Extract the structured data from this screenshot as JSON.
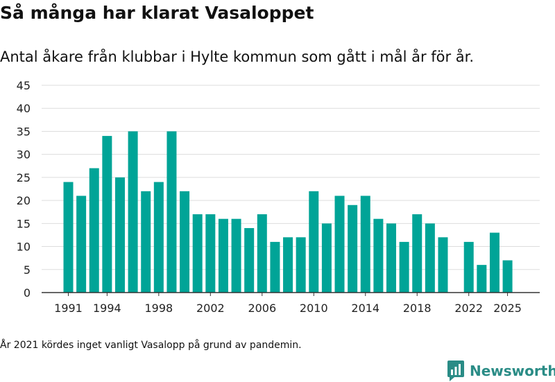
{
  "title": "Så många har klarat Vasaloppet",
  "subtitle": "Antal åkare från klubbar i Hylte kommun som gått i mål år för år.",
  "footnote": "År 2021 kördes inget vanligt Vasalopp på grund av pandemin.",
  "brand": {
    "name": "Newsworthy",
    "color": "#2a8c86",
    "icon": "newsworthy-logo-icon"
  },
  "chart_data": {
    "type": "bar",
    "bar_color": "#00a497",
    "x": [
      1991,
      1992,
      1993,
      1994,
      1995,
      1996,
      1997,
      1998,
      1999,
      2000,
      2001,
      2002,
      2003,
      2004,
      2005,
      2006,
      2007,
      2008,
      2009,
      2010,
      2011,
      2012,
      2013,
      2014,
      2015,
      2016,
      2017,
      2018,
      2019,
      2020,
      2022,
      2023,
      2024,
      2025
    ],
    "values": [
      24,
      21,
      27,
      34,
      25,
      35,
      22,
      24,
      35,
      22,
      17,
      17,
      16,
      16,
      14,
      17,
      11,
      12,
      12,
      22,
      15,
      21,
      19,
      21,
      16,
      15,
      11,
      17,
      15,
      12,
      11,
      6,
      13,
      7
    ],
    "x_ticks": [
      "1991",
      "1994",
      "1998",
      "2002",
      "2006",
      "2010",
      "2014",
      "2018",
      "2022",
      "2025"
    ],
    "y_ticks": [
      "0",
      "5",
      "10",
      "15",
      "20",
      "25",
      "30",
      "35",
      "40",
      "45"
    ],
    "ylim": [
      0,
      45
    ],
    "xlim": [
      1991,
      2025
    ],
    "grid": true,
    "xlabel": "",
    "ylabel": ""
  }
}
